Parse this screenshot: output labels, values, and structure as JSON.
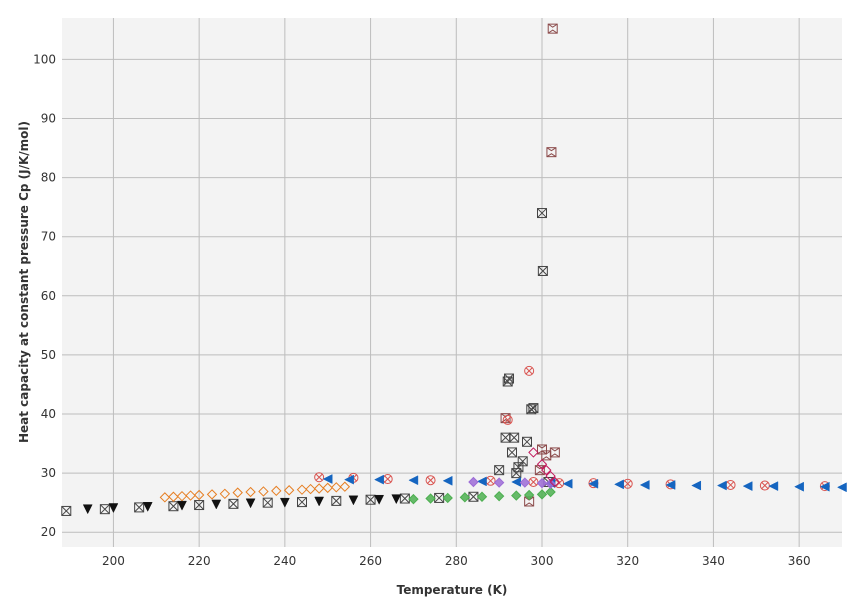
{
  "chart_data": {
    "type": "scatter",
    "title": "",
    "xlabel": "Temperature (K)",
    "ylabel": "Heat capacity at constant pressure Cp (J/K/mol)",
    "xlim": [
      188,
      370
    ],
    "ylim": [
      17.5,
      107
    ],
    "xticks": [
      200,
      220,
      240,
      260,
      280,
      300,
      320,
      340,
      360
    ],
    "yticks": [
      20,
      30,
      40,
      50,
      60,
      70,
      80,
      90,
      100
    ],
    "grid": true,
    "legend": "none",
    "background": "#f3f3f3",
    "series": [
      {
        "marker": "x-square",
        "color": "#444444",
        "points": [
          [
            189,
            23.6
          ],
          [
            198,
            23.9
          ],
          [
            206,
            24.2
          ],
          [
            214,
            24.4
          ],
          [
            220,
            24.6
          ],
          [
            228,
            24.8
          ],
          [
            236,
            25.0
          ],
          [
            244,
            25.1
          ],
          [
            252,
            25.3
          ],
          [
            260,
            25.5
          ],
          [
            268,
            25.7
          ],
          [
            276,
            25.8
          ],
          [
            284,
            26.0
          ],
          [
            290,
            30.5
          ],
          [
            291.5,
            36
          ],
          [
            292,
            45.5
          ],
          [
            292.3,
            46
          ],
          [
            293,
            33.5
          ],
          [
            293.5,
            36
          ],
          [
            294,
            30
          ],
          [
            294.5,
            31
          ],
          [
            295.5,
            32
          ],
          [
            296.5,
            35.3
          ],
          [
            297.5,
            40.8
          ],
          [
            298,
            41
          ],
          [
            300,
            74
          ],
          [
            300.2,
            64.2
          ],
          [
            301.5,
            28.5
          ]
        ]
      },
      {
        "marker": "bowtie-square",
        "color": "#8b4a4a",
        "points": [
          [
            291.5,
            39.3
          ],
          [
            297,
            25.2
          ],
          [
            299.5,
            30.5
          ],
          [
            300,
            34
          ],
          [
            301,
            33
          ],
          [
            302.2,
            84.3
          ],
          [
            302.5,
            105.2
          ],
          [
            303,
            33.5
          ]
        ]
      },
      {
        "marker": "circle-x",
        "color": "#d9534f",
        "points": [
          [
            297,
            47.3
          ],
          [
            292,
            39
          ],
          [
            248,
            29.3
          ],
          [
            256,
            29.2
          ],
          [
            264,
            29
          ],
          [
            274,
            28.8
          ],
          [
            288,
            28.7
          ],
          [
            298,
            28.5
          ],
          [
            304,
            28.3
          ],
          [
            312,
            28.3
          ],
          [
            320,
            28.2
          ],
          [
            330,
            28.1
          ],
          [
            344,
            28.0
          ],
          [
            352,
            27.9
          ],
          [
            366,
            27.8
          ]
        ]
      },
      {
        "marker": "diamond",
        "color": "#e67e22",
        "points": [
          [
            212,
            25.9
          ],
          [
            214,
            26
          ],
          [
            216,
            26.1
          ],
          [
            218,
            26.2
          ],
          [
            220,
            26.3
          ],
          [
            223,
            26.4
          ],
          [
            226,
            26.5
          ],
          [
            229,
            26.7
          ],
          [
            232,
            26.8
          ],
          [
            235,
            26.9
          ],
          [
            238,
            27
          ],
          [
            241,
            27.1
          ],
          [
            244,
            27.2
          ],
          [
            246,
            27.3
          ],
          [
            248,
            27.4
          ],
          [
            250,
            27.5
          ],
          [
            252,
            27.6
          ],
          [
            254,
            27.7
          ]
        ]
      },
      {
        "marker": "triangle-left",
        "color": "#1565c0",
        "points": [
          [
            250,
            29
          ],
          [
            255,
            28.9
          ],
          [
            262,
            28.9
          ],
          [
            270,
            28.8
          ],
          [
            278,
            28.7
          ],
          [
            286,
            28.6
          ],
          [
            294,
            28.5
          ],
          [
            302,
            28.3
          ],
          [
            306,
            28.2
          ],
          [
            312,
            28.2
          ],
          [
            318,
            28.1
          ],
          [
            324,
            28.0
          ],
          [
            330,
            28.0
          ],
          [
            336,
            27.9
          ],
          [
            342,
            27.9
          ],
          [
            348,
            27.8
          ],
          [
            354,
            27.8
          ],
          [
            360,
            27.7
          ],
          [
            366,
            27.7
          ],
          [
            370,
            27.6
          ]
        ]
      },
      {
        "marker": "diamond",
        "color": "#4caf50",
        "points": [
          [
            270,
            25.6
          ],
          [
            274,
            25.7
          ],
          [
            278,
            25.8
          ],
          [
            282,
            25.9
          ],
          [
            286,
            26.0
          ],
          [
            290,
            26.1
          ],
          [
            294,
            26.2
          ],
          [
            297,
            26.3
          ],
          [
            300,
            26.4
          ],
          [
            302,
            26.8
          ]
        ]
      },
      {
        "marker": "triangle-down",
        "color": "#111111",
        "points": [
          [
            194,
            23.9
          ],
          [
            200,
            24.1
          ],
          [
            208,
            24.3
          ],
          [
            216,
            24.5
          ],
          [
            224,
            24.7
          ],
          [
            232,
            24.9
          ],
          [
            240,
            25.0
          ],
          [
            248,
            25.2
          ],
          [
            256,
            25.4
          ],
          [
            262,
            25.5
          ],
          [
            266,
            25.6
          ]
        ]
      },
      {
        "marker": "diamond",
        "color": "#9c6bd6",
        "points": [
          [
            284,
            28.5
          ],
          [
            290,
            28.4
          ],
          [
            296,
            28.4
          ],
          [
            300,
            28.3
          ],
          [
            302,
            28.2
          ]
        ]
      },
      {
        "marker": "diamond-open",
        "color": "#c2185b",
        "points": [
          [
            298,
            33.5
          ],
          [
            300,
            31.5
          ],
          [
            301,
            30.5
          ],
          [
            302,
            29.5
          ],
          [
            303,
            28.5
          ]
        ]
      }
    ]
  }
}
